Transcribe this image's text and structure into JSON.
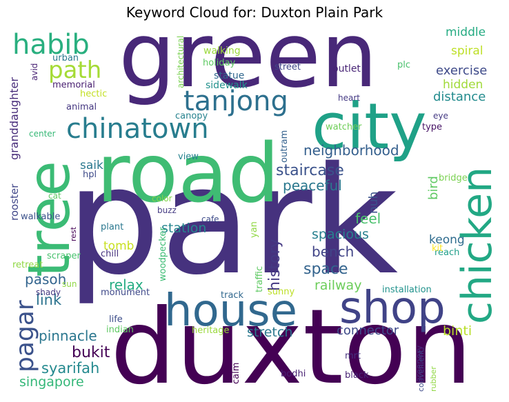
{
  "title": "Keyword Cloud for: Duxton Plain Park",
  "words": [
    {
      "text": "park",
      "color": "#46327e"
    },
    {
      "text": "duxton",
      "color": "#440154"
    },
    {
      "text": "green",
      "color": "#482878"
    },
    {
      "text": "road",
      "color": "#3fbc73"
    },
    {
      "text": "city",
      "color": "#1fa187"
    },
    {
      "text": "tree",
      "color": "#3bbb75"
    },
    {
      "text": "house",
      "color": "#31688e"
    },
    {
      "text": "shop",
      "color": "#404387"
    },
    {
      "text": "chicken",
      "color": "#22a884"
    },
    {
      "text": "chinatown",
      "color": "#287d8e"
    },
    {
      "text": "tanjong",
      "color": "#2d708e"
    },
    {
      "text": "habib",
      "color": "#29af7f"
    },
    {
      "text": "path",
      "color": "#a5db36"
    },
    {
      "text": "pagar",
      "color": "#3b528b"
    },
    {
      "text": "neighborhood",
      "color": "#345f8d"
    },
    {
      "text": "staircase",
      "color": "#3b528b"
    },
    {
      "text": "peaceful",
      "color": "#2a788e"
    },
    {
      "text": "history",
      "color": "#443983"
    },
    {
      "text": "bench",
      "color": "#414487"
    },
    {
      "text": "space",
      "color": "#33638d"
    },
    {
      "text": "spacious",
      "color": "#27808e"
    },
    {
      "text": "feel",
      "color": "#4ac16d"
    },
    {
      "text": "railway",
      "color": "#6ccd5a"
    },
    {
      "text": "station",
      "color": "#25858e"
    },
    {
      "text": "pinnacle",
      "color": "#2a768e"
    },
    {
      "text": "syarifah",
      "color": "#23898e"
    },
    {
      "text": "singapore",
      "color": "#35b779"
    },
    {
      "text": "bukit",
      "color": "#440154"
    },
    {
      "text": "relax",
      "color": "#25ac82"
    },
    {
      "text": "stretch",
      "color": "#2a788e"
    },
    {
      "text": "connector",
      "color": "#3e4a89"
    },
    {
      "text": "binti",
      "color": "#b8de29"
    },
    {
      "text": "link",
      "color": "#2c738e"
    },
    {
      "text": "pasoh",
      "color": "#32648e"
    },
    {
      "text": "exercise",
      "color": "#3e4a89"
    },
    {
      "text": "distance",
      "color": "#228b8d"
    },
    {
      "text": "hidden",
      "color": "#a0da39"
    },
    {
      "text": "middle",
      "color": "#25ab82"
    },
    {
      "text": "spiral",
      "color": "#bddf26"
    },
    {
      "text": "keong",
      "color": "#2f6c8e"
    },
    {
      "text": "tomb",
      "color": "#c8e020"
    },
    {
      "text": "saik",
      "color": "#2a788e"
    },
    {
      "text": "nuh",
      "color": "#3b528b"
    },
    {
      "text": "bird",
      "color": "#5ec962"
    },
    {
      "text": "granddaughter",
      "color": "#472c7a"
    },
    {
      "text": "rooster",
      "color": "#404688"
    },
    {
      "text": "walking",
      "color": "#9bd93c"
    },
    {
      "text": "holiday",
      "color": "#5ec962"
    },
    {
      "text": "statue",
      "color": "#31688e"
    },
    {
      "text": "sidewalk",
      "color": "#21918c"
    },
    {
      "text": "street",
      "color": "#3f4788"
    },
    {
      "text": "outlet",
      "color": "#482576"
    },
    {
      "text": "plc",
      "color": "#4ac16d"
    },
    {
      "text": "urban",
      "color": "#2a788e"
    },
    {
      "text": "memorial",
      "color": "#481f70"
    },
    {
      "text": "avid",
      "color": "#482173"
    },
    {
      "text": "hectic",
      "color": "#c2df23"
    },
    {
      "text": "animal",
      "color": "#453781"
    },
    {
      "text": "canopy",
      "color": "#26828e"
    },
    {
      "text": "center",
      "color": "#38b977"
    },
    {
      "text": "architectural",
      "color": "#7ad151"
    },
    {
      "text": "heart",
      "color": "#443983"
    },
    {
      "text": "eye",
      "color": "#443983"
    },
    {
      "text": "type",
      "color": "#471365"
    },
    {
      "text": "watcher",
      "color": "#6ece58"
    },
    {
      "text": "outram",
      "color": "#34618d"
    },
    {
      "text": "view",
      "color": "#26828e"
    },
    {
      "text": "hpl",
      "color": "#3e4a89"
    },
    {
      "text": "bridge",
      "color": "#7ad151"
    },
    {
      "text": "cat",
      "color": "#5ec962"
    },
    {
      "text": "color",
      "color": "#84d44b"
    },
    {
      "text": "buzz",
      "color": "#443a83"
    },
    {
      "text": "walkable",
      "color": "#3b528b"
    },
    {
      "text": "cafe",
      "color": "#3e4c8a"
    },
    {
      "text": "plant",
      "color": "#2a778e"
    },
    {
      "text": "rest",
      "color": "#440154"
    },
    {
      "text": "yan",
      "color": "#90d743"
    },
    {
      "text": "chill",
      "color": "#46327e"
    },
    {
      "text": "reach",
      "color": "#1f9e89"
    },
    {
      "text": "kit",
      "color": "#fde725"
    },
    {
      "text": "retreat",
      "color": "#8fd744"
    },
    {
      "text": "scraper",
      "color": "#48c16e"
    },
    {
      "text": "woodpecker",
      "color": "#3dbc74"
    },
    {
      "text": "traffic",
      "color": "#5ec962"
    },
    {
      "text": "sunny",
      "color": "#bddf26"
    },
    {
      "text": "installation",
      "color": "#20928c"
    },
    {
      "text": "sun",
      "color": "#8fd744"
    },
    {
      "text": "monument",
      "color": "#3e4989"
    },
    {
      "text": "track",
      "color": "#31688e"
    },
    {
      "text": "shady",
      "color": "#453781"
    },
    {
      "text": "life",
      "color": "#3d4e8a"
    },
    {
      "text": "indian",
      "color": "#5ec962"
    },
    {
      "text": "heritage",
      "color": "#9bd93c"
    },
    {
      "text": "mrt",
      "color": "#46307e"
    },
    {
      "text": "convenient",
      "color": "#3e4a89"
    },
    {
      "text": "greenery",
      "color": "#472c7a"
    },
    {
      "text": "rubber",
      "color": "#90d743"
    },
    {
      "text": "calm",
      "color": "#440154"
    },
    {
      "text": "bodhi",
      "color": "#482173"
    },
    {
      "text": "black",
      "color": "#482475"
    }
  ]
}
